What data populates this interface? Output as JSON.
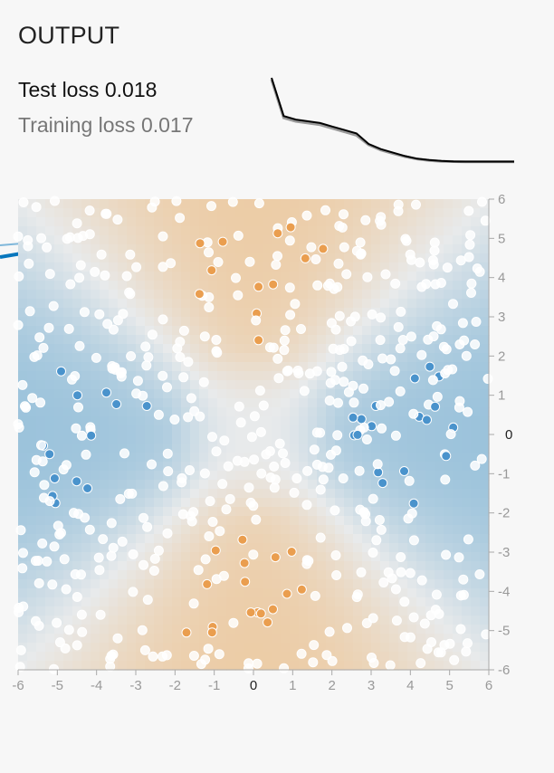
{
  "output": {
    "title": "OUTPUT",
    "test_loss_label": "Test loss",
    "test_loss_value": "0.018",
    "training_loss_label": "Training loss",
    "training_loss_value": "0.017"
  },
  "loss_curve": {
    "test": [
      0.5,
      0.28,
      0.26,
      0.25,
      0.24,
      0.22,
      0.2,
      0.18,
      0.12,
      0.09,
      0.07,
      0.05,
      0.035,
      0.027,
      0.022,
      0.019,
      0.018,
      0.018,
      0.018,
      0.018,
      0.018
    ],
    "training": [
      0.49,
      0.27,
      0.25,
      0.24,
      0.23,
      0.21,
      0.19,
      0.17,
      0.115,
      0.085,
      0.065,
      0.047,
      0.033,
      0.025,
      0.02,
      0.018,
      0.017,
      0.017,
      0.017,
      0.017,
      0.017
    ]
  },
  "heatmap": {
    "x_ticks": [
      "-6",
      "-5",
      "-4",
      "-3",
      "-2",
      "-1",
      "0",
      "1",
      "2",
      "3",
      "4",
      "5",
      "6"
    ],
    "y_ticks": [
      "6",
      "5",
      "4",
      "3",
      "2",
      "1",
      "0",
      "-1",
      "-2",
      "-3",
      "-4",
      "-5",
      "-6"
    ],
    "highlight_tick": "0",
    "colors": {
      "positive": "#0877bd",
      "negative": "#f59322",
      "neutral": "#e8eaeb"
    }
  }
}
